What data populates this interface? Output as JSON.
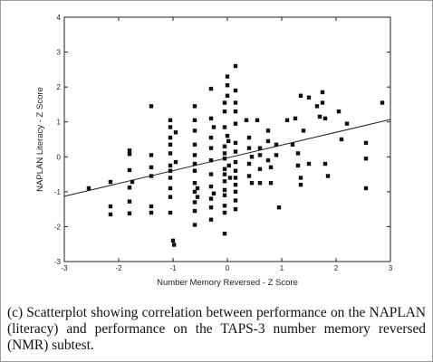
{
  "chart_data": {
    "type": "scatter",
    "xlabel": "Number Memory Reversed - Z Score",
    "ylabel": "NAPLAN Literacy - Z Score",
    "xlim": [
      -3,
      3
    ],
    "ylim": [
      -3,
      4
    ],
    "xticks": [
      "-3",
      "-2",
      "-1",
      "0",
      "1",
      "2",
      "3"
    ],
    "yticks": [
      "-3",
      "-2",
      "-1",
      "0",
      "1",
      "2",
      "3",
      "4"
    ],
    "grid": false,
    "trendline": {
      "x": [
        -3,
        3
      ],
      "y": [
        -1.13,
        1.07
      ]
    },
    "points": [
      {
        "x": -2.55,
        "y": -0.9
      },
      {
        "x": -2.15,
        "y": -1.42
      },
      {
        "x": -2.15,
        "y": -1.65
      },
      {
        "x": -2.15,
        "y": -0.72
      },
      {
        "x": -1.8,
        "y": 0.18
      },
      {
        "x": -1.8,
        "y": 0.08
      },
      {
        "x": -1.8,
        "y": -0.38
      },
      {
        "x": -1.8,
        "y": -0.88
      },
      {
        "x": -1.8,
        "y": -1.28
      },
      {
        "x": -1.8,
        "y": -1.62
      },
      {
        "x": -1.75,
        "y": -0.72
      },
      {
        "x": -1.4,
        "y": 1.45
      },
      {
        "x": -1.4,
        "y": 0.05
      },
      {
        "x": -1.4,
        "y": -0.3
      },
      {
        "x": -1.4,
        "y": -0.55
      },
      {
        "x": -1.4,
        "y": -1.42
      },
      {
        "x": -1.4,
        "y": -1.6
      },
      {
        "x": -1.05,
        "y": 1.05
      },
      {
        "x": -1.05,
        "y": 0.85
      },
      {
        "x": -1.05,
        "y": 0.55
      },
      {
        "x": -1.05,
        "y": 0.35
      },
      {
        "x": -1.05,
        "y": 0.1
      },
      {
        "x": -1.05,
        "y": -0.25
      },
      {
        "x": -1.05,
        "y": -0.4
      },
      {
        "x": -1.05,
        "y": -0.6
      },
      {
        "x": -1.05,
        "y": -0.9
      },
      {
        "x": -1.05,
        "y": -1.15
      },
      {
        "x": -1.05,
        "y": -1.6
      },
      {
        "x": -1.0,
        "y": -2.4
      },
      {
        "x": -0.98,
        "y": -2.52
      },
      {
        "x": -0.95,
        "y": -0.15
      },
      {
        "x": -0.95,
        "y": 0.7
      },
      {
        "x": -0.6,
        "y": 1.45
      },
      {
        "x": -0.6,
        "y": 1.05
      },
      {
        "x": -0.6,
        "y": 0.75
      },
      {
        "x": -0.6,
        "y": 0.35
      },
      {
        "x": -0.6,
        "y": 0.05
      },
      {
        "x": -0.6,
        "y": -0.2
      },
      {
        "x": -0.6,
        "y": -0.4
      },
      {
        "x": -0.6,
        "y": -0.75
      },
      {
        "x": -0.6,
        "y": -1.0
      },
      {
        "x": -0.6,
        "y": -1.3
      },
      {
        "x": -0.6,
        "y": -1.55
      },
      {
        "x": -0.6,
        "y": -1.95
      },
      {
        "x": -0.55,
        "y": -0.9
      },
      {
        "x": -0.55,
        "y": -1.15
      },
      {
        "x": -0.3,
        "y": 1.95
      },
      {
        "x": -0.3,
        "y": 1.1
      },
      {
        "x": -0.3,
        "y": 0.55
      },
      {
        "x": -0.3,
        "y": 0.25
      },
      {
        "x": -0.3,
        "y": -0.1
      },
      {
        "x": -0.3,
        "y": -0.5
      },
      {
        "x": -0.3,
        "y": -0.85
      },
      {
        "x": -0.3,
        "y": -1.2
      },
      {
        "x": -0.3,
        "y": -1.45
      },
      {
        "x": -0.3,
        "y": -1.8
      },
      {
        "x": -0.25,
        "y": 0.85
      },
      {
        "x": -0.25,
        "y": -1.05
      },
      {
        "x": -0.05,
        "y": 1.55
      },
      {
        "x": -0.05,
        "y": 1.3
      },
      {
        "x": -0.05,
        "y": 0.85
      },
      {
        "x": -0.05,
        "y": 0.3
      },
      {
        "x": -0.05,
        "y": 0.1
      },
      {
        "x": -0.05,
        "y": -0.05
      },
      {
        "x": -0.05,
        "y": -0.35
      },
      {
        "x": -0.05,
        "y": -0.5
      },
      {
        "x": -0.05,
        "y": -0.7
      },
      {
        "x": -0.05,
        "y": -0.95
      },
      {
        "x": -0.05,
        "y": -1.1
      },
      {
        "x": -0.05,
        "y": -1.4
      },
      {
        "x": -0.05,
        "y": -1.6
      },
      {
        "x": -0.05,
        "y": -2.2
      },
      {
        "x": 0.0,
        "y": 2.3
      },
      {
        "x": 0.0,
        "y": 2.05
      },
      {
        "x": 0.0,
        "y": 1.75
      },
      {
        "x": 0.0,
        "y": 0.6
      },
      {
        "x": 0.02,
        "y": 0.45
      },
      {
        "x": 0.03,
        "y": -0.25
      },
      {
        "x": 0.05,
        "y": -0.6
      },
      {
        "x": 0.15,
        "y": 2.6
      },
      {
        "x": 0.15,
        "y": 1.9
      },
      {
        "x": 0.15,
        "y": 1.55
      },
      {
        "x": 0.15,
        "y": 1.3
      },
      {
        "x": 0.15,
        "y": 0.95
      },
      {
        "x": 0.15,
        "y": 0.4
      },
      {
        "x": 0.15,
        "y": 0.15
      },
      {
        "x": 0.15,
        "y": -0.15
      },
      {
        "x": 0.15,
        "y": -0.4
      },
      {
        "x": 0.15,
        "y": -0.6
      },
      {
        "x": 0.15,
        "y": -0.8
      },
      {
        "x": 0.15,
        "y": -1.0
      },
      {
        "x": 0.15,
        "y": -1.25
      },
      {
        "x": 0.15,
        "y": -1.5
      },
      {
        "x": 0.35,
        "y": 1.05
      },
      {
        "x": 0.4,
        "y": 0.55
      },
      {
        "x": 0.4,
        "y": 0.25
      },
      {
        "x": 0.4,
        "y": -0.2
      },
      {
        "x": 0.4,
        "y": -0.55
      },
      {
        "x": 0.45,
        "y": -0.75
      },
      {
        "x": 0.45,
        "y": 0.0
      },
      {
        "x": 0.55,
        "y": 1.05
      },
      {
        "x": 0.6,
        "y": 0.25
      },
      {
        "x": 0.6,
        "y": 0.05
      },
      {
        "x": 0.6,
        "y": -0.35
      },
      {
        "x": 0.6,
        "y": -0.75
      },
      {
        "x": 0.75,
        "y": 0.75
      },
      {
        "x": 0.75,
        "y": 0.45
      },
      {
        "x": 0.75,
        "y": -0.1
      },
      {
        "x": 0.8,
        "y": -0.3
      },
      {
        "x": 0.8,
        "y": -0.75
      },
      {
        "x": 0.9,
        "y": 0.35
      },
      {
        "x": 0.9,
        "y": 0.05
      },
      {
        "x": 0.95,
        "y": -1.45
      },
      {
        "x": 1.1,
        "y": 1.05
      },
      {
        "x": 1.2,
        "y": 0.35
      },
      {
        "x": 1.25,
        "y": 1.1
      },
      {
        "x": 1.3,
        "y": -0.25
      },
      {
        "x": 1.3,
        "y": 0.1
      },
      {
        "x": 1.35,
        "y": 1.75
      },
      {
        "x": 1.35,
        "y": -0.6
      },
      {
        "x": 1.35,
        "y": -0.8
      },
      {
        "x": 1.4,
        "y": 0.75
      },
      {
        "x": 1.5,
        "y": 1.7
      },
      {
        "x": 1.5,
        "y": -0.2
      },
      {
        "x": 1.65,
        "y": 1.45
      },
      {
        "x": 1.7,
        "y": 1.15
      },
      {
        "x": 1.75,
        "y": 1.85
      },
      {
        "x": 1.75,
        "y": 1.55
      },
      {
        "x": 1.8,
        "y": 1.1
      },
      {
        "x": 1.8,
        "y": -0.2
      },
      {
        "x": 1.85,
        "y": -0.55
      },
      {
        "x": 2.05,
        "y": 1.3
      },
      {
        "x": 2.1,
        "y": 0.5
      },
      {
        "x": 2.2,
        "y": 0.95
      },
      {
        "x": 2.55,
        "y": 0.4
      },
      {
        "x": 2.55,
        "y": -0.05
      },
      {
        "x": 2.55,
        "y": -0.9
      },
      {
        "x": 2.85,
        "y": 1.55
      }
    ]
  },
  "caption": "(c) Scatterplot showing correlation between performance on the NAPLAN (literacy) and performance on the TAPS-3 number memory reversed (NMR) subtest."
}
